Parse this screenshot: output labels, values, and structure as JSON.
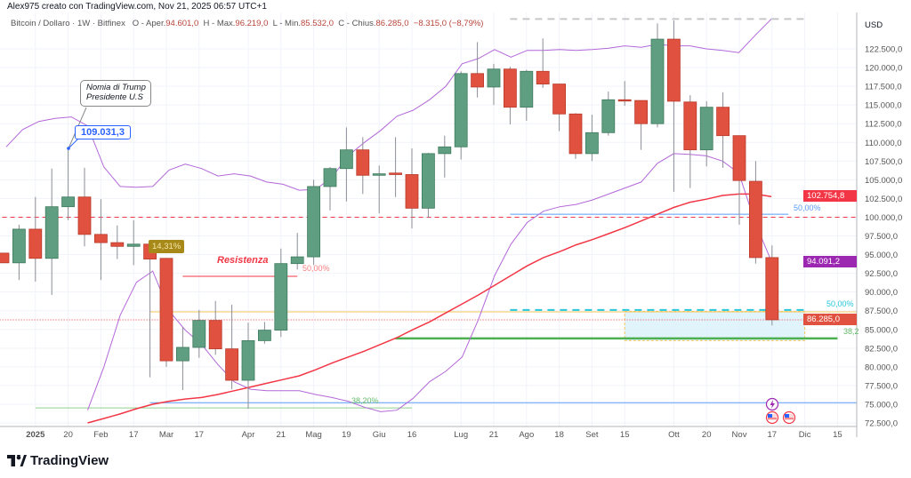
{
  "header": {
    "attribution": "Alex975 creato con TradingView.com, Nov 21, 2025 06:57 UTC+1"
  },
  "legend": {
    "symbol": "Bitcoin / Dollaro · 1W · Bitfinex",
    "open_label": "O - Aper.",
    "open": "94.601,0",
    "high_label": "H - Max.",
    "high": "96.219,0",
    "low_label": "L - Min.",
    "low": "85.532,0",
    "close_label": "C - Chius.",
    "close": "86.285,0",
    "change": "−8.315,0 (−8,79%)"
  },
  "annotations": {
    "note_line1": "Nomia di Trump",
    "note_line2": "Presidente U.S",
    "price_note": "109.031,3",
    "change_tooltip": "14,31%",
    "resistance_text": "Resistenza",
    "fib_resist_label": "50,00%",
    "fib_top_label": "50,00%",
    "fib_mid_label": "50,00%",
    "fib_low_label": "38,20%",
    "fib_right_label": "38,2"
  },
  "price_labels": {
    "ema": "102.754,8",
    "bb_lower": "94.091,2",
    "last": "86.285,0"
  },
  "logo": "TradingView",
  "colors": {
    "up": "#5f9e80",
    "down": "#e0513f",
    "ema": "#f23645",
    "bollinger": "#b368d8",
    "fib_blue": "#5b9cf6",
    "fib_green": "#4caf50",
    "teal": "#26c6da",
    "yellow": "#f5c65a",
    "price_note": "#2962ff",
    "tooltip": "#a7891a",
    "bb_label": "#9c27b0"
  },
  "chart_data": {
    "type": "candlestick",
    "title": "Bitcoin / Dollaro · 1W · Bitfinex",
    "ylabel": "USD",
    "ylim": [
      72500,
      125000
    ],
    "yticks": [
      "122.500,0",
      "120.000,0",
      "117.500,0",
      "115.000,0",
      "112.500,0",
      "110.000,0",
      "107.500,0",
      "105.000,0",
      "102.500,0",
      "100.000,0",
      "97.500,0",
      "95.000,0",
      "92.500,0",
      "90.000,0",
      "87.500,0",
      "85.000,0",
      "82.500,0",
      "80.000,0",
      "77.500,0",
      "75.000,0",
      "72.500,0"
    ],
    "ytick_values": [
      122500,
      120000,
      117500,
      115000,
      112500,
      110000,
      107500,
      105000,
      102500,
      100000,
      97500,
      95000,
      92500,
      90000,
      87500,
      85000,
      82500,
      80000,
      77500,
      75000,
      72500
    ],
    "xticks": [
      {
        "label": "2025",
        "date": "2025-01-06"
      },
      {
        "label": "20",
        "date": "2025-01-20"
      },
      {
        "label": "Feb",
        "date": "2025-02-03"
      },
      {
        "label": "17",
        "date": "2025-02-17"
      },
      {
        "label": "Mar",
        "date": "2025-03-03"
      },
      {
        "label": "17",
        "date": "2025-03-17"
      },
      {
        "label": "Apr",
        "date": "2025-04-07"
      },
      {
        "label": "21",
        "date": "2025-04-21"
      },
      {
        "label": "Mag",
        "date": "2025-05-05"
      },
      {
        "label": "19",
        "date": "2025-05-19"
      },
      {
        "label": "Giu",
        "date": "2025-06-02"
      },
      {
        "label": "16",
        "date": "2025-06-16"
      },
      {
        "label": "Lug",
        "date": "2025-07-07"
      },
      {
        "label": "21",
        "date": "2025-07-21"
      },
      {
        "label": "Ago",
        "date": "2025-08-04"
      },
      {
        "label": "18",
        "date": "2025-08-18"
      },
      {
        "label": "Set",
        "date": "2025-09-01"
      },
      {
        "label": "15",
        "date": "2025-09-15"
      },
      {
        "label": "Ott",
        "date": "2025-10-06"
      },
      {
        "label": "20",
        "date": "2025-10-20"
      },
      {
        "label": "Nov",
        "date": "2025-11-03"
      },
      {
        "label": "17",
        "date": "2025-11-17"
      },
      {
        "label": "Dic",
        "date": "2025-12-01"
      },
      {
        "label": "15",
        "date": "2025-12-15"
      }
    ],
    "start_date": "2024-12-23",
    "candles": [
      [
        "2024-12-23",
        95200,
        95200,
        93900,
        93900
      ],
      [
        "2024-12-30",
        93900,
        99000,
        91600,
        98400
      ],
      [
        "2025-01-06",
        98400,
        102700,
        91400,
        94500
      ],
      [
        "2025-01-13",
        94500,
        106500,
        89600,
        101400
      ],
      [
        "2025-01-20",
        101400,
        109031,
        99600,
        102700
      ],
      [
        "2025-01-27",
        102700,
        106600,
        96100,
        97700
      ],
      [
        "2025-02-03",
        97700,
        102400,
        91600,
        96600
      ],
      [
        "2025-02-10",
        96600,
        98900,
        94400,
        96100
      ],
      [
        "2025-02-17",
        96100,
        99600,
        93600,
        96400
      ],
      [
        "2025-02-24",
        96400,
        96400,
        78600,
        94400
      ],
      [
        "2025-03-03",
        94500,
        94500,
        80000,
        80800
      ],
      [
        "2025-03-10",
        80800,
        85300,
        76900,
        82600
      ],
      [
        "2025-03-17",
        82600,
        87600,
        81200,
        86200
      ],
      [
        "2025-03-24",
        86200,
        88800,
        81600,
        82400
      ],
      [
        "2025-03-31",
        82400,
        88300,
        77000,
        78200
      ],
      [
        "2025-04-07",
        78200,
        85900,
        74400,
        83500
      ],
      [
        "2025-04-14",
        83500,
        86000,
        83100,
        84900
      ],
      [
        "2025-04-21",
        84900,
        95800,
        84000,
        93800
      ],
      [
        "2025-04-28",
        93800,
        97900,
        93000,
        94700
      ],
      [
        "2025-05-05",
        94700,
        105000,
        93600,
        104100
      ],
      [
        "2025-05-12",
        104100,
        106700,
        100900,
        106500
      ],
      [
        "2025-05-19",
        106500,
        112000,
        102100,
        109000
      ],
      [
        "2025-05-26",
        109000,
        110700,
        103100,
        105600
      ],
      [
        "2025-06-02",
        105600,
        106900,
        100500,
        105800
      ],
      [
        "2025-06-09",
        105900,
        110700,
        102700,
        105700
      ],
      [
        "2025-06-16",
        105700,
        109200,
        98500,
        101200
      ],
      [
        "2025-06-23",
        101200,
        108600,
        99900,
        108500
      ],
      [
        "2025-06-30",
        108500,
        110900,
        105300,
        109400
      ],
      [
        "2025-07-07",
        109400,
        119500,
        107700,
        119200
      ],
      [
        "2025-07-14",
        119200,
        123400,
        116000,
        117400
      ],
      [
        "2025-07-21",
        117400,
        120500,
        115000,
        119800
      ],
      [
        "2025-07-28",
        119800,
        120100,
        112400,
        114700
      ],
      [
        "2025-08-04",
        114700,
        119700,
        112900,
        119500
      ],
      [
        "2025-08-11",
        119500,
        123900,
        117300,
        117800
      ],
      [
        "2025-08-18",
        117800,
        117800,
        111500,
        113800
      ],
      [
        "2025-08-25",
        113800,
        113900,
        107800,
        108500
      ],
      [
        "2025-09-01",
        108500,
        113700,
        107500,
        111300
      ],
      [
        "2025-09-08",
        111300,
        116800,
        110900,
        115700
      ],
      [
        "2025-09-15",
        115700,
        118200,
        114900,
        115600
      ],
      [
        "2025-09-22",
        115600,
        115600,
        109000,
        112500
      ],
      [
        "2025-09-29",
        112500,
        125900,
        112000,
        123800
      ],
      [
        "2025-10-06",
        123800,
        126300,
        103400,
        115500
      ],
      [
        "2025-10-13",
        115400,
        116300,
        103900,
        109000
      ],
      [
        "2025-10-20",
        109000,
        115500,
        106800,
        114700
      ],
      [
        "2025-10-27",
        114700,
        116700,
        106600,
        110900
      ],
      [
        "2025-11-03",
        110900,
        110900,
        99000,
        104900
      ],
      [
        "2025-11-10",
        104800,
        107500,
        93800,
        94600
      ],
      [
        "2025-11-17",
        94601,
        96219,
        85532,
        86285
      ]
    ],
    "bollinger_upper": [
      109400,
      111700,
      112800,
      113200,
      113400,
      112200,
      106700,
      104100,
      104000,
      104100,
      106300,
      107100,
      106500,
      105500,
      105800,
      105500,
      104700,
      104400,
      103600,
      103700,
      105300,
      108200,
      110000,
      111600,
      113500,
      114300,
      115700,
      117500,
      120500,
      121200,
      122400,
      121400,
      122300,
      122300,
      122400,
      122300,
      122400,
      122600,
      122900,
      122700,
      123100,
      122900,
      122900,
      122500,
      122300,
      122000,
      124300,
      126500
    ],
    "bollinger_lower": [
      null,
      null,
      null,
      null,
      null,
      74200,
      80000,
      86900,
      91300,
      92800,
      87500,
      84900,
      83000,
      80300,
      78000,
      77000,
      76800,
      76800,
      76800,
      76300,
      75900,
      75400,
      74600,
      74000,
      74200,
      75800,
      78000,
      79400,
      81300,
      86300,
      92200,
      96400,
      99300,
      100800,
      101400,
      101700,
      102300,
      103100,
      103900,
      104700,
      107200,
      108500,
      108400,
      108200,
      107500,
      105900,
      99300,
      94091.2
    ],
    "ema": [
      null,
      null,
      null,
      null,
      null,
      72500,
      73100,
      73700,
      74400,
      75000,
      75400,
      75700,
      75900,
      76300,
      76800,
      77300,
      77800,
      78300,
      78800,
      79600,
      80500,
      81300,
      82100,
      83000,
      83900,
      85000,
      86000,
      87200,
      88400,
      89600,
      90900,
      92200,
      93500,
      94600,
      95400,
      96300,
      97000,
      97800,
      98600,
      99500,
      100400,
      101300,
      102000,
      102400,
      102900,
      103100,
      103100,
      102754.8
    ],
    "levels": [
      {
        "name": "round-100k",
        "price": 100000,
        "from": "2024-12-16",
        "to": "axis",
        "color": "#f23645",
        "style": "dashed"
      },
      {
        "name": "fib-top-50",
        "price": 100400,
        "from": "2025-07-28",
        "to": "2025-11-24",
        "color": "#5b9cf6",
        "style": "solid"
      },
      {
        "name": "blue-support",
        "price": 75200,
        "from": "2025-02-24",
        "to": "axis",
        "color": "#5b9cf6",
        "style": "solid"
      },
      {
        "name": "fib-low-382",
        "price": 74500,
        "from": "2025-01-06",
        "to": "2025-06-16",
        "color": "#8fd18f",
        "style": "solid"
      },
      {
        "name": "yellow-level",
        "price": 87350,
        "from": "2025-02-24",
        "to": "axis",
        "color": "#f5c65a",
        "style": "solid"
      },
      {
        "name": "last-price",
        "price": 86285,
        "from": "2024-12-16",
        "to": "axis",
        "color": "#f23645",
        "style": "dotted"
      },
      {
        "name": "teal-50",
        "price": 87600,
        "from": "2025-07-28",
        "to": "2025-12-01",
        "color": "#26c6da",
        "style": "dashed-thick"
      },
      {
        "name": "green-support",
        "price": 83800,
        "from": "2025-06-09",
        "to": "2025-12-15",
        "color": "#4caf50",
        "style": "thick"
      },
      {
        "name": "resistance",
        "price": 92100,
        "from": "2025-03-10",
        "to": "2025-04-28",
        "color": "#f23645",
        "style": "solid"
      },
      {
        "name": "top-dashed",
        "price": 126500,
        "from": "2025-07-28",
        "to": "2025-12-01",
        "color": "#c7c7c7",
        "style": "dashed-thick"
      }
    ],
    "zone": {
      "from": "2025-09-15",
      "to": "2025-12-01",
      "top": 87400,
      "bottom": 83500,
      "fill": "#d9f1fb",
      "border": "#f5c65a"
    },
    "grid": true
  }
}
